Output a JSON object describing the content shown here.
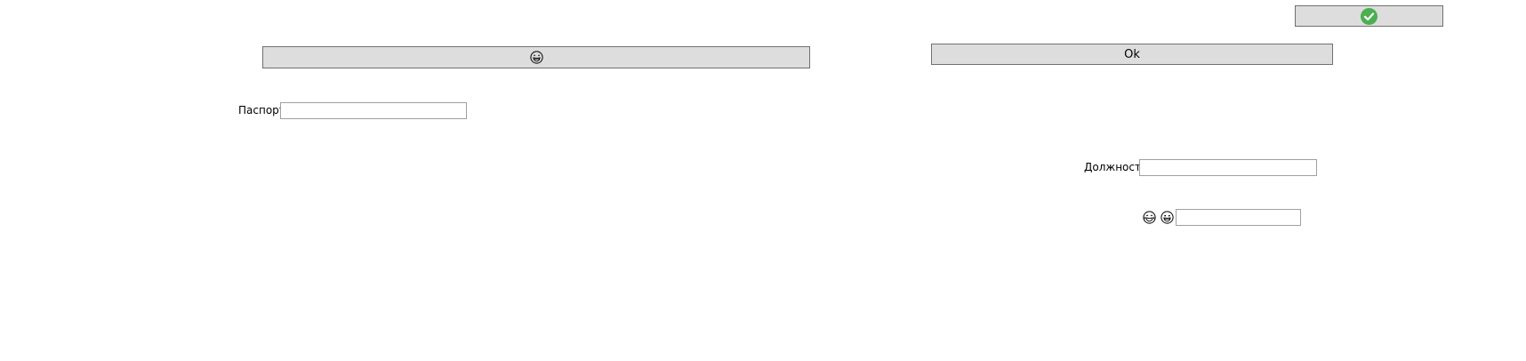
{
  "top_right_button": {
    "icon": "check-circle-icon",
    "accent": "#4caf50"
  },
  "emoji_button": {
    "icon": "grinning-face-icon"
  },
  "ok_button": {
    "label": "Ok"
  },
  "passport": {
    "label": "Паспорт",
    "value": ""
  },
  "position": {
    "label": "Должность",
    "value": ""
  },
  "emoji_field": {
    "icons": [
      "tears-of-joy-face-icon",
      "grinning-face-icon"
    ],
    "value": ""
  }
}
